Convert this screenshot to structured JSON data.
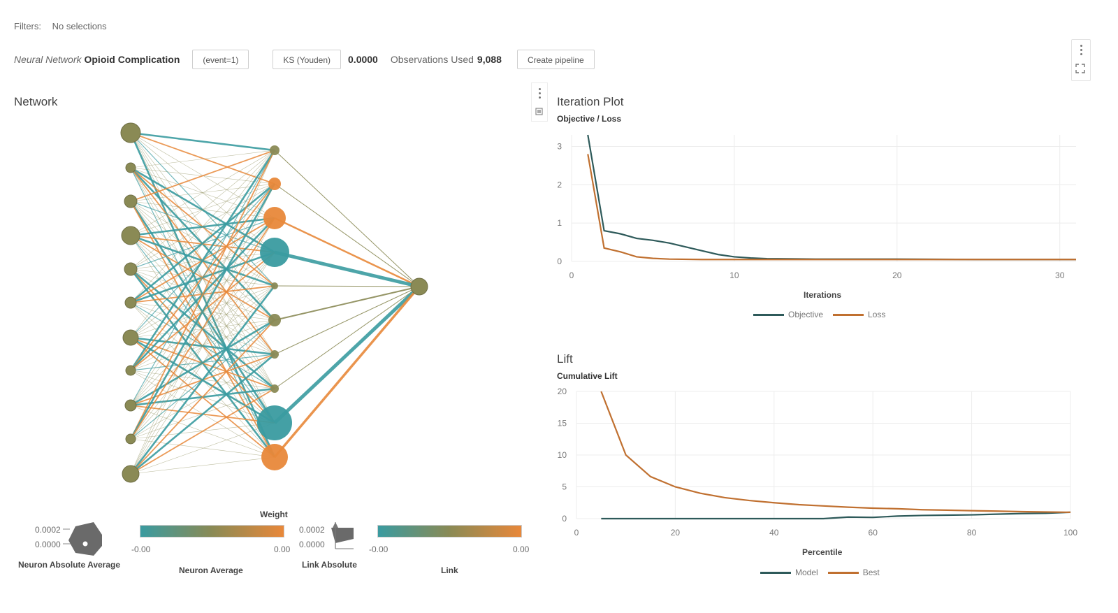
{
  "filters": {
    "label": "Filters:",
    "value": "No selections"
  },
  "header": {
    "model_type": "Neural Network",
    "model_name": "Opioid Complication",
    "event_button": "(event=1)",
    "ks_button": "KS (Youden)",
    "ks_value": "0.0000",
    "obs_label": "Observations Used",
    "obs_value": "9,088",
    "create_pipeline": "Create pipeline"
  },
  "network": {
    "title": "Network",
    "legend": {
      "weight_title": "Weight",
      "neuron_abs_avg": {
        "label": "Neuron Absolute Average",
        "max": "0.0002",
        "min": "0.0000"
      },
      "neuron_avg": {
        "label": "Neuron Average",
        "min": "-0.00",
        "max": "0.00"
      },
      "link_abs": {
        "label": "Link Absolute",
        "max": "0.0002",
        "min": "0.0000"
      },
      "link": {
        "label": "Link",
        "min": "-0.00",
        "max": "0.00"
      }
    },
    "colors": {
      "negative": "#3a9ba0",
      "neutral": "#8a8a55",
      "positive": "#e8883a"
    }
  },
  "iteration_plot": {
    "title": "Iteration Plot",
    "subtitle": "Objective / Loss",
    "xlabel": "Iterations",
    "legend": [
      "Objective",
      "Loss"
    ]
  },
  "lift_plot": {
    "title": "Lift",
    "subtitle": "Cumulative Lift",
    "xlabel": "Percentile",
    "legend": [
      "Model",
      "Best"
    ]
  },
  "chart_data": [
    {
      "type": "line",
      "title": "Objective / Loss",
      "xlabel": "Iterations",
      "ylabel": "",
      "xlim": [
        0,
        31
      ],
      "ylim": [
        0,
        3.3
      ],
      "xticks": [
        0,
        10,
        20,
        30
      ],
      "yticks": [
        0,
        1,
        2,
        3
      ],
      "grid": true,
      "legend_position": "bottom",
      "series": [
        {
          "name": "Objective",
          "color": "#2e5a5a",
          "x": [
            1,
            2,
            3,
            4,
            5,
            6,
            7,
            8,
            9,
            10,
            11,
            12,
            15,
            20,
            25,
            31
          ],
          "y": [
            3.3,
            0.8,
            0.72,
            0.6,
            0.55,
            0.48,
            0.38,
            0.28,
            0.18,
            0.12,
            0.09,
            0.07,
            0.06,
            0.06,
            0.05,
            0.05
          ]
        },
        {
          "name": "Loss",
          "color": "#c07030",
          "x": [
            1,
            2,
            3,
            4,
            5,
            6,
            8,
            10,
            15,
            20,
            25,
            31
          ],
          "y": [
            2.8,
            0.35,
            0.25,
            0.12,
            0.08,
            0.06,
            0.05,
            0.05,
            0.05,
            0.05,
            0.05,
            0.05
          ]
        }
      ]
    },
    {
      "type": "line",
      "title": "Cumulative Lift",
      "xlabel": "Percentile",
      "ylabel": "",
      "xlim": [
        0,
        100
      ],
      "ylim": [
        0,
        20
      ],
      "xticks": [
        0,
        20,
        40,
        60,
        80,
        100
      ],
      "yticks": [
        0,
        5,
        10,
        15,
        20
      ],
      "grid": true,
      "legend_position": "bottom",
      "series": [
        {
          "name": "Model",
          "color": "#2e5a5a",
          "x": [
            5,
            10,
            15,
            20,
            25,
            30,
            35,
            40,
            45,
            50,
            55,
            60,
            65,
            70,
            75,
            80,
            85,
            90,
            95,
            100
          ],
          "y": [
            0,
            0,
            0,
            0,
            0,
            0,
            0,
            0,
            0,
            0,
            0.25,
            0.2,
            0.4,
            0.5,
            0.55,
            0.6,
            0.7,
            0.8,
            0.85,
            1.0
          ]
        },
        {
          "name": "Best",
          "color": "#c07030",
          "x": [
            5,
            10,
            15,
            20,
            25,
            30,
            35,
            40,
            45,
            50,
            55,
            60,
            65,
            70,
            75,
            80,
            85,
            90,
            95,
            100
          ],
          "y": [
            20,
            10,
            6.6,
            5,
            4,
            3.3,
            2.85,
            2.5,
            2.2,
            2.0,
            1.8,
            1.65,
            1.55,
            1.4,
            1.33,
            1.25,
            1.18,
            1.1,
            1.05,
            1.0
          ]
        }
      ]
    }
  ]
}
